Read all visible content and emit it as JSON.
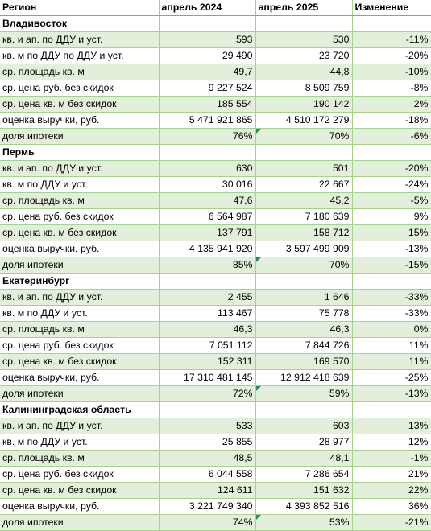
{
  "headers": [
    "Регион",
    "апрель 2024",
    "апрель 2025",
    "Изменение"
  ],
  "sections": [
    {
      "name": "Владивосток",
      "rows": [
        {
          "label": "кв. и ап. по ДДУ и уст.",
          "v2024": "593",
          "v2025": "530",
          "change": "-11%",
          "flag": false
        },
        {
          "label": "кв. м по ДДУ по ДДУ и уст.",
          "v2024": "29 490",
          "v2025": "23 720",
          "change": "-20%",
          "flag": false
        },
        {
          "label": "ср. площадь кв. м",
          "v2024": "49,7",
          "v2025": "44,8",
          "change": "-10%",
          "flag": false
        },
        {
          "label": "ср. цена руб. без скидок",
          "v2024": "9 227 524",
          "v2025": "8 509 759",
          "change": "-8%",
          "flag": false
        },
        {
          "label": "ср. цена кв. м без скидок",
          "v2024": "185 554",
          "v2025": "190 142",
          "change": "2%",
          "flag": false
        },
        {
          "label": "оценка выручки, руб.",
          "v2024": "5 471 921 865",
          "v2025": "4 510 172 279",
          "change": "-18%",
          "flag": false
        },
        {
          "label": "доля ипотеки",
          "v2024": "76%",
          "v2025": "70%",
          "change": "-6%",
          "flag": true
        }
      ]
    },
    {
      "name": "Пермь",
      "rows": [
        {
          "label": "кв. и ап. по ДДУ и уст.",
          "v2024": "630",
          "v2025": "501",
          "change": "-20%",
          "flag": false
        },
        {
          "label": "кв. м по ДДУ и уст.",
          "v2024": "30 016",
          "v2025": "22 667",
          "change": "-24%",
          "flag": false
        },
        {
          "label": "ср. площадь кв. м",
          "v2024": "47,6",
          "v2025": "45,2",
          "change": "-5%",
          "flag": false
        },
        {
          "label": "ср. цена руб. без скидок",
          "v2024": "6 564 987",
          "v2025": "7 180 639",
          "change": "9%",
          "flag": false
        },
        {
          "label": "ср. цена кв. м без скидок",
          "v2024": "137 791",
          "v2025": "158 712",
          "change": "15%",
          "flag": false
        },
        {
          "label": "оценка выручки, руб.",
          "v2024": "4 135 941 920",
          "v2025": "3 597 499 909",
          "change": "-13%",
          "flag": false
        },
        {
          "label": "доля ипотеки",
          "v2024": "85%",
          "v2025": "70%",
          "change": "-15%",
          "flag": true
        }
      ]
    },
    {
      "name": "Екатеринбург",
      "rows": [
        {
          "label": "кв. и ап. по ДДУ и уст.",
          "v2024": "2 455",
          "v2025": "1 646",
          "change": "-33%",
          "flag": false
        },
        {
          "label": "кв. м по ДДУ и уст.",
          "v2024": "113 467",
          "v2025": "75 778",
          "change": "-33%",
          "flag": false
        },
        {
          "label": "ср. площадь кв. м",
          "v2024": "46,3",
          "v2025": "46,3",
          "change": "0%",
          "flag": false
        },
        {
          "label": "ср. цена руб. без скидок",
          "v2024": "7 051 112",
          "v2025": "7 844 726",
          "change": "11%",
          "flag": false
        },
        {
          "label": "ср. цена кв. м без скидок",
          "v2024": "152 311",
          "v2025": "169 570",
          "change": "11%",
          "flag": false
        },
        {
          "label": "оценка выручки, руб.",
          "v2024": "17 310 481 145",
          "v2025": "12 912 418 639",
          "change": "-25%",
          "flag": false
        },
        {
          "label": "доля ипотеки",
          "v2024": "72%",
          "v2025": "59%",
          "change": "-13%",
          "flag": true
        }
      ]
    },
    {
      "name": "Калининградская область",
      "rows": [
        {
          "label": "кв. и ап. по ДДУ и уст.",
          "v2024": "533",
          "v2025": "603",
          "change": "13%",
          "flag": false
        },
        {
          "label": "кв. м по ДДУ и уст.",
          "v2024": "25 855",
          "v2025": "28 977",
          "change": "12%",
          "flag": false
        },
        {
          "label": "ср. площадь кв. м",
          "v2024": "48,5",
          "v2025": "48,1",
          "change": "-1%",
          "flag": false
        },
        {
          "label": "ср. цена руб. без скидок",
          "v2024": "6 044 558",
          "v2025": "7 286 654",
          "change": "21%",
          "flag": false
        },
        {
          "label": "ср. цена кв. м без скидок",
          "v2024": "124 611",
          "v2025": "151 632",
          "change": "22%",
          "flag": false
        },
        {
          "label": "оценка выручки, руб.",
          "v2024": "3 221 749 340",
          "v2025": "4 393 852 516",
          "change": "36%",
          "flag": false
        },
        {
          "label": "доля ипотеки",
          "v2024": "74%",
          "v2025": "53%",
          "change": "-21%",
          "flag": true
        }
      ]
    }
  ]
}
